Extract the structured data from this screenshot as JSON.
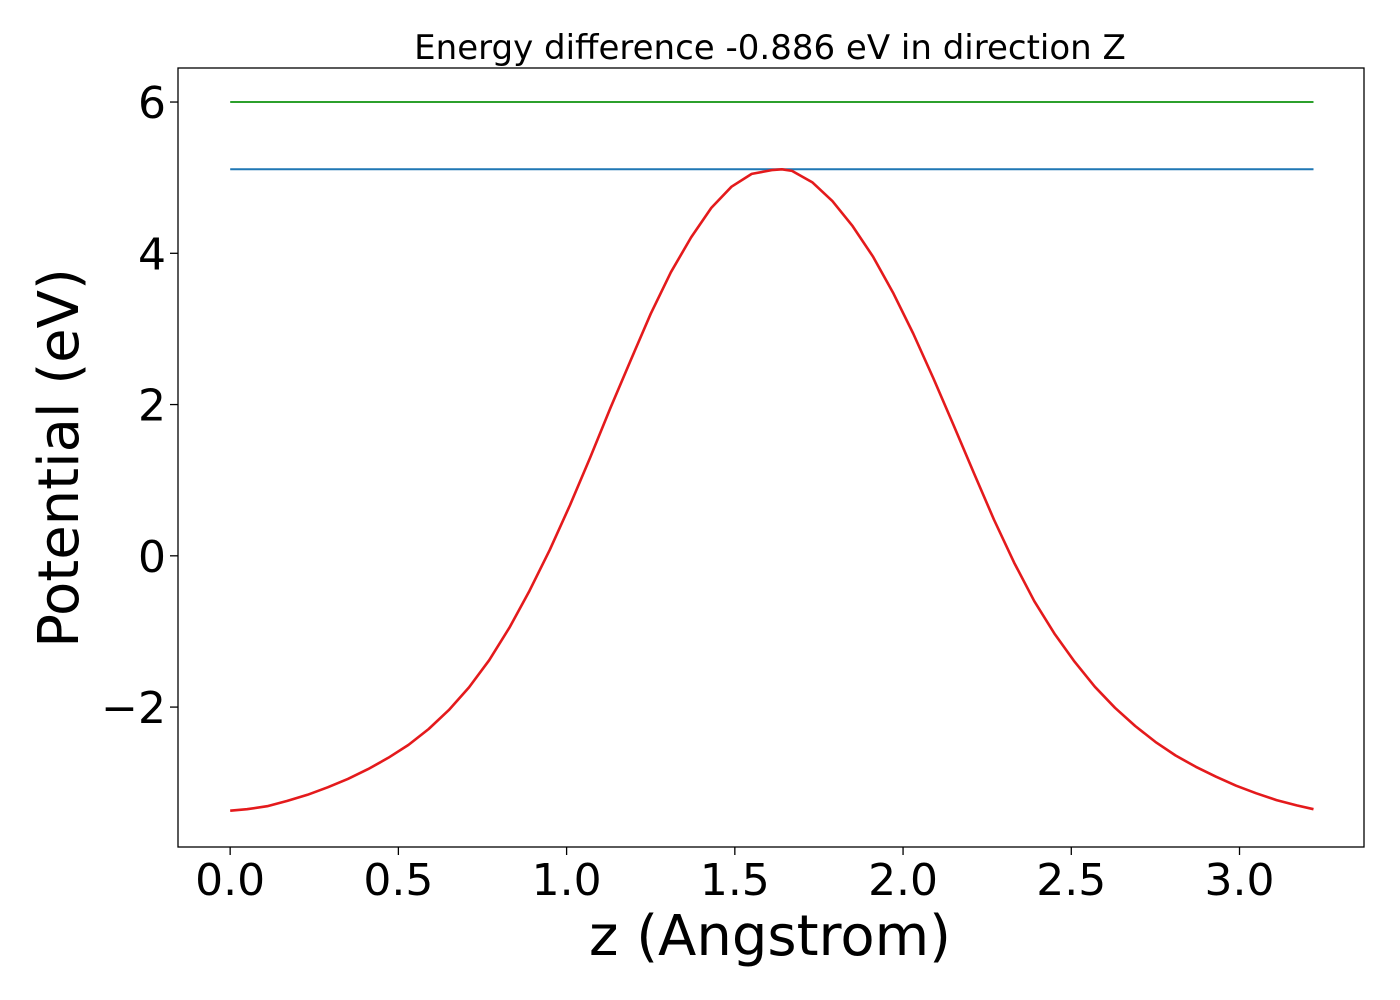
{
  "chart_data": {
    "type": "line",
    "title": "Energy difference -0.886 eV in direction Z",
    "xlabel": "z (Angstrom)",
    "ylabel": "Potential (eV)",
    "xlim": [
      -0.155,
      3.37
    ],
    "ylim": [
      -3.85,
      6.45
    ],
    "x_ticks": [
      0.0,
      0.5,
      1.0,
      1.5,
      2.0,
      2.5,
      3.0
    ],
    "x_tick_labels": [
      "0.0",
      "0.5",
      "1.0",
      "1.5",
      "2.0",
      "2.5",
      "3.0"
    ],
    "y_ticks": [
      -2,
      0,
      2,
      4,
      6
    ],
    "y_tick_labels": [
      "−2",
      "0",
      "2",
      "4",
      "6"
    ],
    "grid": false,
    "legend": "none",
    "series": [
      {
        "color": "#2ca02c",
        "x": [
          0.0,
          3.22
        ],
        "y": [
          6.0,
          6.0
        ]
      },
      {
        "color": "#1f77b4",
        "x": [
          0.0,
          3.22
        ],
        "y": [
          5.11,
          5.11
        ]
      },
      {
        "color": "#e41a1c",
        "x": [
          0.0,
          0.05,
          0.11,
          0.17,
          0.23,
          0.29,
          0.35,
          0.41,
          0.47,
          0.53,
          0.59,
          0.65,
          0.71,
          0.77,
          0.83,
          0.89,
          0.95,
          1.01,
          1.07,
          1.13,
          1.19,
          1.25,
          1.31,
          1.37,
          1.43,
          1.49,
          1.55,
          1.61,
          1.64,
          1.67,
          1.73,
          1.79,
          1.85,
          1.91,
          1.97,
          2.03,
          2.09,
          2.15,
          2.21,
          2.27,
          2.33,
          2.39,
          2.45,
          2.51,
          2.57,
          2.63,
          2.69,
          2.75,
          2.81,
          2.87,
          2.93,
          2.99,
          3.05,
          3.11,
          3.17,
          3.22
        ],
        "y": [
          -3.37,
          -3.35,
          -3.31,
          -3.24,
          -3.16,
          -3.06,
          -2.95,
          -2.82,
          -2.67,
          -2.5,
          -2.29,
          -2.04,
          -1.74,
          -1.38,
          -0.95,
          -0.46,
          0.08,
          0.67,
          1.3,
          1.95,
          2.58,
          3.2,
          3.75,
          4.21,
          4.6,
          4.88,
          5.05,
          5.1,
          5.11,
          5.09,
          4.94,
          4.69,
          4.36,
          3.96,
          3.48,
          2.94,
          2.35,
          1.73,
          1.1,
          0.48,
          -0.09,
          -0.6,
          -1.03,
          -1.4,
          -1.73,
          -2.01,
          -2.25,
          -2.46,
          -2.64,
          -2.79,
          -2.92,
          -3.04,
          -3.14,
          -3.23,
          -3.3,
          -3.35
        ]
      }
    ]
  }
}
